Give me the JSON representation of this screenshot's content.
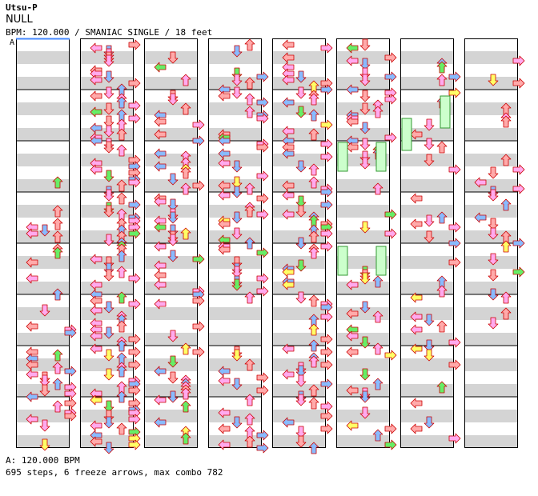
{
  "song": {
    "artist": "Utsu-P",
    "title": "NULL",
    "info": "BPM: 120.000 / SMANIAC SINGLE / 18 feet"
  },
  "marker": "A",
  "footer": {
    "bpm_line": "A: 120.000 BPM",
    "stats": "695 steps, 6 freeze arrows, max combo 782"
  },
  "colors": {
    "quarter": "#ffaaaa",
    "eighth": "#88bbff",
    "sixteenth": "#ffaaee",
    "twelfth": "#ffff66",
    "twentyfourth": "#66ee66",
    "freeze": "#ccffcc",
    "stripe": "#d4d4d4",
    "border": "#000000"
  },
  "lanes": [
    "left",
    "down",
    "up",
    "right"
  ],
  "measures_per_column": 8,
  "columns": 8
}
